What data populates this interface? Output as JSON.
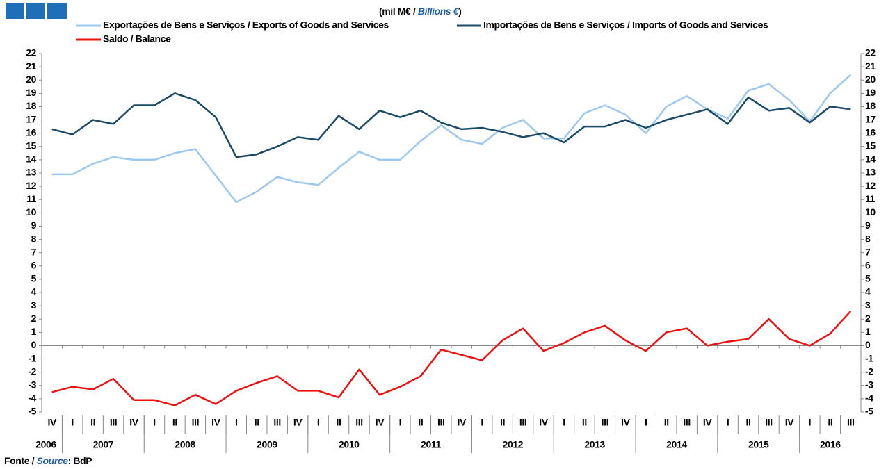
{
  "chart_data": {
    "type": "line",
    "unit_label": "(mil M€ / ",
    "unit_label_en": "Billions €",
    "unit_label_close": ")",
    "source_label": "Fonte / ",
    "source_label_en": "Source",
    "source_value": ": BdP",
    "categories": [
      "IV",
      "I",
      "II",
      "III",
      "IV",
      "I",
      "II",
      "III",
      "IV",
      "I",
      "II",
      "III",
      "IV",
      "I",
      "II",
      "III",
      "IV",
      "I",
      "II",
      "III",
      "IV",
      "I",
      "II",
      "III",
      "IV",
      "I",
      "II",
      "III",
      "IV",
      "I",
      "II",
      "III",
      "IV",
      "I",
      "II",
      "III",
      "IV",
      "I",
      "II",
      "III"
    ],
    "years": [
      "2006",
      "2007",
      "2008",
      "2009",
      "2010",
      "2011",
      "2012",
      "2013",
      "2014",
      "2015",
      "2016"
    ],
    "series": [
      {
        "name": "Exportações de Bens e Serviços / Exports of Goods and Services",
        "color": "#9cc8f0",
        "values": [
          12.9,
          12.9,
          13.7,
          14.2,
          14.0,
          14.0,
          14.5,
          14.8,
          12.8,
          10.8,
          11.6,
          12.7,
          12.3,
          12.1,
          13.4,
          14.6,
          14.0,
          14.0,
          15.4,
          16.6,
          15.5,
          15.2,
          16.4,
          17.0,
          15.6,
          15.6,
          17.5,
          18.1,
          17.4,
          16.0,
          18.0,
          18.8,
          17.8,
          17.1,
          19.2,
          19.7,
          18.5,
          16.9,
          19.0,
          20.4
        ]
      },
      {
        "name": "Importações de Bens e Serviços / Imports of Goods and Services",
        "color": "#1a4a66",
        "values": [
          16.3,
          15.9,
          17.0,
          16.7,
          18.1,
          18.1,
          19.0,
          18.5,
          17.2,
          14.2,
          14.4,
          15.0,
          15.7,
          15.5,
          17.3,
          16.3,
          17.7,
          17.2,
          17.7,
          16.8,
          16.3,
          16.4,
          16.1,
          15.7,
          16.0,
          15.3,
          16.5,
          16.5,
          17.0,
          16.4,
          17.0,
          17.4,
          17.8,
          16.7,
          18.7,
          17.7,
          17.9,
          16.8,
          18.0,
          17.8
        ]
      },
      {
        "name": "Saldo / Balance",
        "color": "#ee1111",
        "values": [
          -3.5,
          -3.1,
          -3.3,
          -2.5,
          -4.1,
          -4.1,
          -4.5,
          -3.7,
          -4.4,
          -3.4,
          -2.8,
          -2.3,
          -3.4,
          -3.4,
          -3.9,
          -1.8,
          -3.7,
          -3.1,
          -2.3,
          -0.3,
          -0.7,
          -1.1,
          0.4,
          1.3,
          -0.4,
          0.2,
          1.0,
          1.5,
          0.4,
          -0.4,
          1.0,
          1.3,
          0.0,
          0.3,
          0.5,
          2.0,
          0.5,
          0.0,
          0.9,
          2.6
        ]
      }
    ],
    "ylim": [
      -5,
      22
    ],
    "yticks": [
      -5,
      -4,
      -3,
      -2,
      -1,
      0,
      1,
      2,
      3,
      4,
      5,
      6,
      7,
      8,
      9,
      10,
      11,
      12,
      13,
      14,
      15,
      16,
      17,
      18,
      19,
      20,
      21,
      22
    ]
  }
}
